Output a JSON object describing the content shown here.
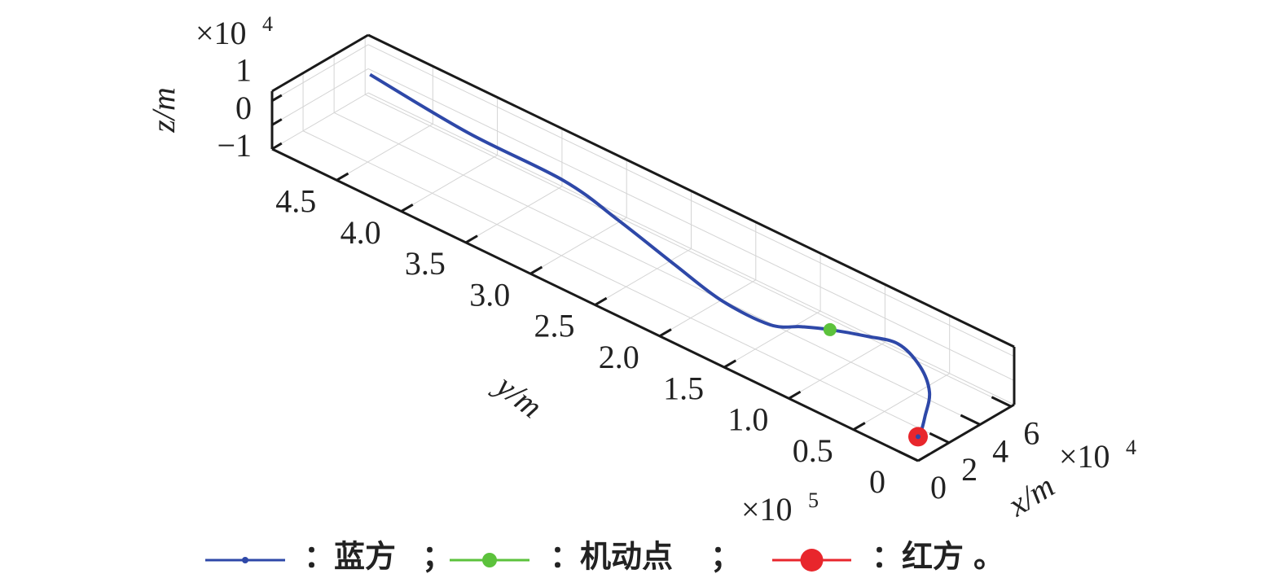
{
  "chart_data": {
    "type": "line3d",
    "xlabel": "x/m",
    "ylabel": "y/m",
    "zlabel": "z/m",
    "xlim": [
      0,
      62000
    ],
    "ylim": [
      0,
      500000
    ],
    "zlim": [
      -10000,
      14000
    ],
    "xticks": [
      0,
      {
        "value": 20000,
        "label": "2"
      },
      {
        "value": 40000,
        "label": "4"
      },
      {
        "value": 60000,
        "label": "6"
      }
    ],
    "yticks": [
      0,
      {
        "value": 50000,
        "label": "0.5"
      },
      {
        "value": 100000,
        "label": "1.0"
      },
      {
        "value": 150000,
        "label": "1.5"
      },
      {
        "value": 200000,
        "label": "2.0"
      },
      {
        "value": 250000,
        "label": "2.5"
      },
      {
        "value": 300000,
        "label": "3.0"
      },
      {
        "value": 350000,
        "label": "3.5"
      },
      {
        "value": 400000,
        "label": "4.0"
      },
      {
        "value": 450000,
        "label": "4.5"
      }
    ],
    "zticks": [
      {
        "value": -10000,
        "label": "−1"
      },
      0,
      {
        "value": 10000,
        "label": "1"
      }
    ],
    "x_multiplier": {
      "base": "×10",
      "exponent": "4"
    },
    "y_multiplier": {
      "base": "×10",
      "exponent": "5"
    },
    "z_multiplier": {
      "base": "×10",
      "exponent": "4"
    },
    "grid": true,
    "series": [
      {
        "name": "蓝方",
        "color": "#2e48a8",
        "x": [
          0,
          3200,
          14200,
          30200,
          43000,
          50300,
          45700,
          39000,
          32600,
          24500,
          25000,
          33000,
          43400,
          51400,
          52400,
          59000
        ],
        "y": [
          0,
          1800,
          11700,
          27400,
          50000,
          75700,
          95000,
          115000,
          129000,
          144000,
          182000,
          228000,
          284000,
          336000,
          411000,
          495000
        ],
        "z": [
          0,
          0,
          0,
          0,
          0,
          0,
          0,
          0,
          0,
          0,
          0,
          0,
          0,
          0,
          0,
          0
        ]
      },
      {
        "name": "机动点",
        "color": "#5cc23c",
        "marker": "circle",
        "x": [
          39000
        ],
        "y": [
          115000
        ],
        "z": [
          0
        ]
      },
      {
        "name": "红方",
        "color": "#e8262c",
        "marker": "circle",
        "x": [
          0
        ],
        "y": [
          0
        ],
        "z": [
          0
        ]
      }
    ],
    "legend_colon": "：",
    "legend_separator": "；",
    "legend_end": "。"
  }
}
